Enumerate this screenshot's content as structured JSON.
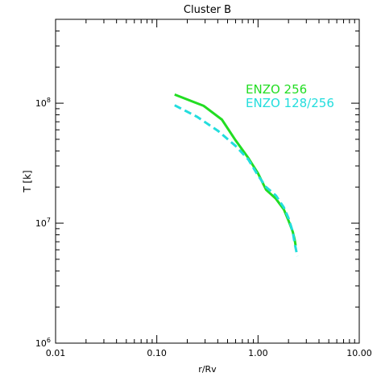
{
  "chart_data": {
    "type": "line",
    "title": "Cluster B",
    "xlabel": "r/Rv",
    "ylabel": "T [k]",
    "x_scale": "log",
    "y_scale": "log",
    "xlim": [
      0.01,
      10.0
    ],
    "ylim": [
      1000000,
      500000000
    ],
    "x_ticks": [
      {
        "value": 0.01,
        "label": "0.01"
      },
      {
        "value": 0.1,
        "label": "0.10"
      },
      {
        "value": 1.0,
        "label": "1.00"
      },
      {
        "value": 10.0,
        "label": "10.00"
      }
    ],
    "y_ticks": [
      {
        "value": 1000000,
        "base": "10",
        "exp": "6"
      },
      {
        "value": 10000000,
        "base": "10",
        "exp": "7"
      },
      {
        "value": 100000000,
        "base": "10",
        "exp": "8"
      }
    ],
    "grid": false,
    "legend_position": "top-right",
    "series": [
      {
        "name": "ENZO 256",
        "color": "#22dd22",
        "dash": "solid",
        "x": [
          0.15,
          0.29,
          0.44,
          0.6,
          0.8,
          1.0,
          1.2,
          1.5,
          1.8,
          2.0,
          2.2,
          2.3,
          2.35
        ],
        "y": [
          118000000,
          95000000,
          73000000,
          49000000,
          35000000,
          26000000,
          19000000,
          16000000,
          13000000,
          10500000,
          8500000,
          7300000,
          6500000
        ]
      },
      {
        "name": "ENZO 128/256",
        "color": "#22dddd",
        "dash": "dashed",
        "x": [
          0.15,
          0.25,
          0.4,
          0.6,
          0.8,
          1.0,
          1.2,
          1.5,
          1.8,
          2.0,
          2.2,
          2.3,
          2.45
        ],
        "y": [
          96000000,
          77000000,
          59000000,
          44000000,
          34000000,
          25000000,
          20000000,
          17000000,
          13500000,
          11000000,
          8500000,
          6800000,
          5300000
        ]
      }
    ]
  }
}
